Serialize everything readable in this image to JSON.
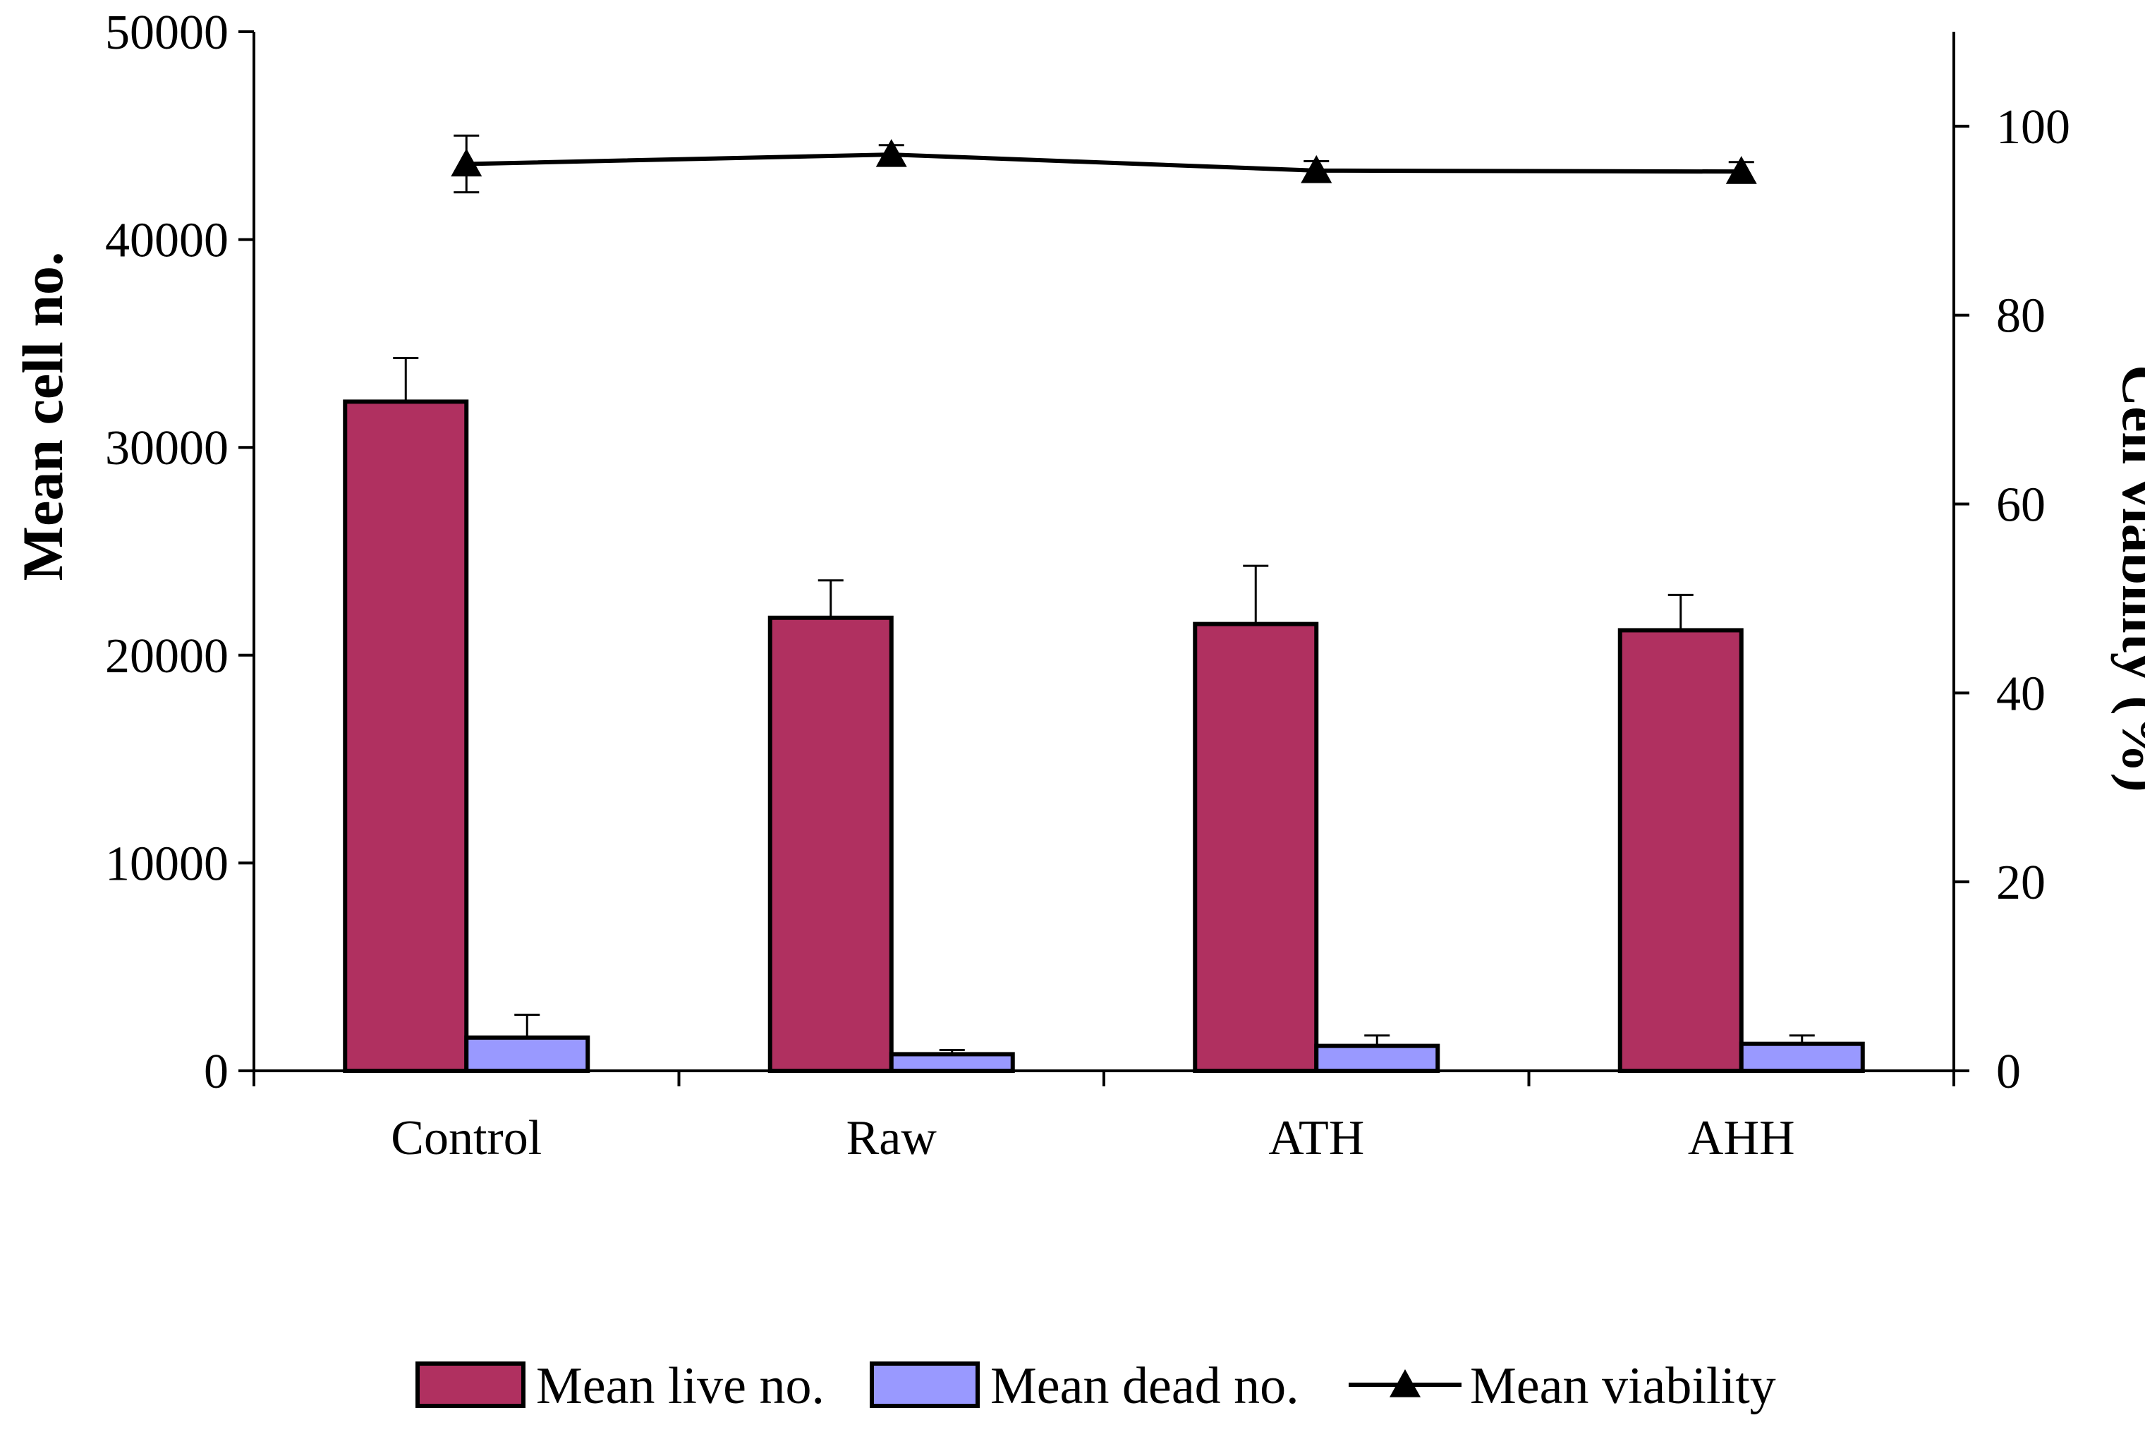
{
  "chart_data": {
    "type": "bar",
    "categories": [
      "Control",
      "Raw",
      "ATH",
      "AHH"
    ],
    "series": [
      {
        "name": "Mean live no.",
        "kind": "bar",
        "axis": "left",
        "color": "#B03060",
        "values": [
          32200,
          21800,
          21500,
          21200
        ],
        "errors": [
          2100,
          1800,
          2800,
          1700
        ]
      },
      {
        "name": "Mean dead no.",
        "kind": "bar",
        "axis": "left",
        "color": "#9999FF",
        "values": [
          1600,
          800,
          1200,
          1300
        ],
        "errors": [
          1100,
          200,
          500,
          400
        ]
      },
      {
        "name": "Mean viability",
        "kind": "line",
        "axis": "right",
        "color": "#000000",
        "marker": "triangle",
        "values": [
          96,
          97,
          95.3,
          95.2
        ],
        "errors": [
          3,
          1,
          1,
          1
        ]
      }
    ],
    "y_left": {
      "label": "Mean cell no.",
      "ylim": [
        0,
        50000
      ],
      "ticks": [
        "0",
        "10000",
        "20000",
        "30000",
        "40000",
        "50000"
      ]
    },
    "y_right": {
      "label": "Cell viability (%)",
      "ylim": [
        0,
        110
      ],
      "ticks": [
        "0",
        "20",
        "40",
        "60",
        "80",
        "100"
      ]
    },
    "legend_position": "bottom",
    "grid": false
  }
}
